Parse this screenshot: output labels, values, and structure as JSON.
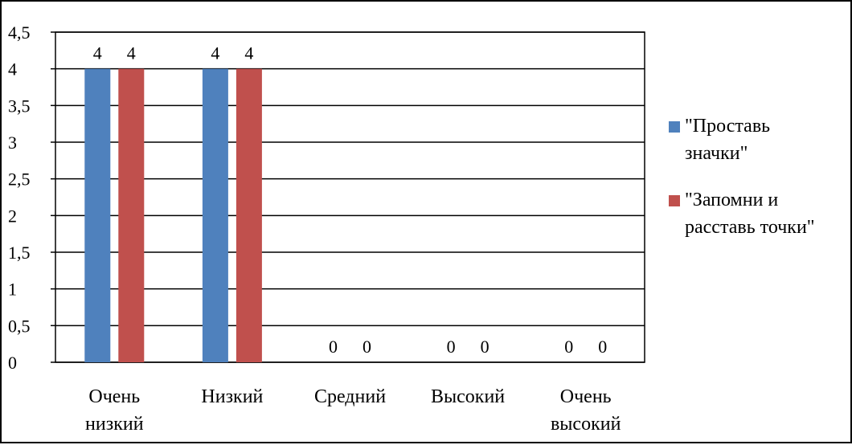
{
  "chart_data": {
    "type": "bar",
    "categories": [
      [
        "Очень",
        "низкий"
      ],
      [
        "Низкий"
      ],
      [
        "Средний"
      ],
      [
        "Высокий"
      ],
      [
        "Очень",
        "высокий"
      ]
    ],
    "series": [
      {
        "name": [
          "\"Проставь",
          "значки\""
        ],
        "color": "#4f81bd",
        "values": [
          4,
          4,
          0,
          0,
          0
        ]
      },
      {
        "name": [
          "\"Запомни и",
          "расставь точки\""
        ],
        "color": "#c0504d",
        "values": [
          4,
          4,
          0,
          0,
          0
        ]
      }
    ],
    "ylim": [
      0,
      4.5
    ],
    "yticks": [
      "0",
      "0,5",
      "1",
      "1,5",
      "2",
      "2,5",
      "3",
      "3,5",
      "4",
      "4,5"
    ],
    "ytick_values": [
      0,
      0.5,
      1,
      1.5,
      2,
      2.5,
      3,
      3.5,
      4,
      4.5
    ],
    "grid": true,
    "legend_position": "right",
    "data_labels": true
  }
}
